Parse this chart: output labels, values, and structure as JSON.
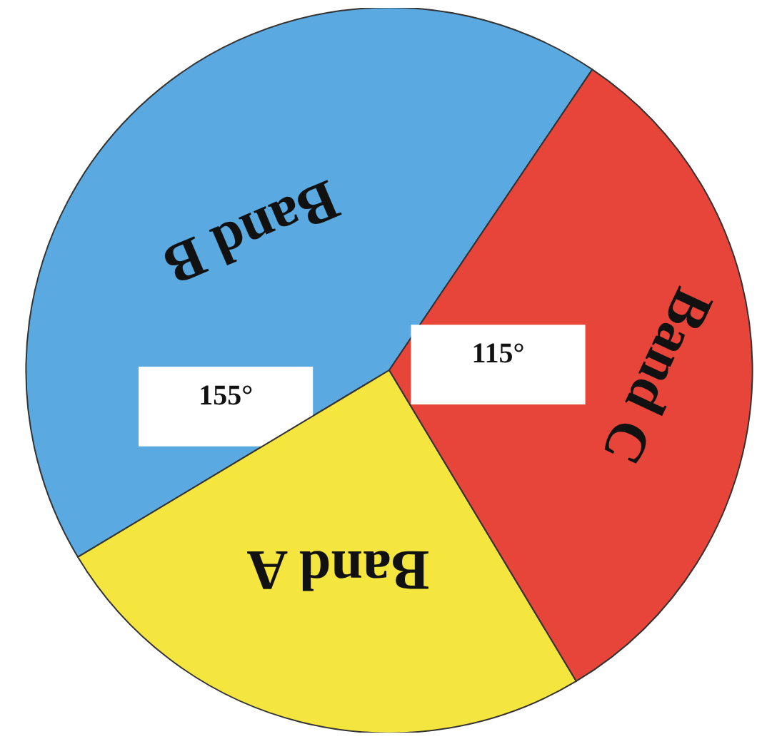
{
  "chart_data": {
    "type": "pie",
    "categories": [
      "Band B",
      "Band A",
      "Band C"
    ],
    "values": [
      155,
      90,
      115
    ],
    "colors": [
      "#5aa9e0",
      "#f4e53f",
      "#e8453a"
    ],
    "value_labels": [
      "155°",
      null,
      "115°"
    ]
  }
}
